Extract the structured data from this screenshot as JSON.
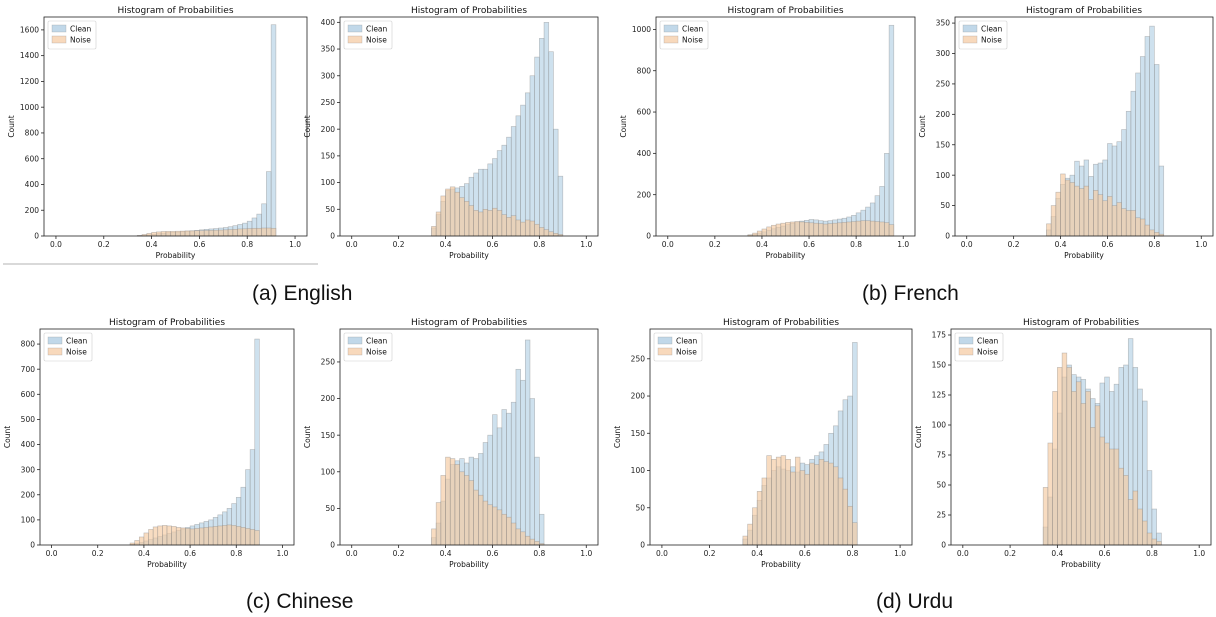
{
  "captions": [
    "(a) English",
    "(b) French",
    "(c) Chinese",
    "(d) Urdu"
  ],
  "style": {
    "clean_color": "#a6c8e0",
    "noise_color": "#f5c9a0",
    "edge_color": "#8a8a8a"
  },
  "chart_data": [
    {
      "type": "bar",
      "title": "Histogram of Probabilities",
      "xlabel": "Probability",
      "ylabel": "Count",
      "xlim": [
        -0.05,
        1.05
      ],
      "ylim": [
        0,
        1700
      ],
      "xticks": [
        "0.0",
        "0.2",
        "0.4",
        "0.6",
        "0.8",
        "1.0"
      ],
      "yticks": [
        0,
        200,
        400,
        600,
        800,
        1000,
        1200,
        1400,
        1600
      ],
      "legend": "top-left",
      "bin_start": 0.34,
      "bin_width": 0.02,
      "series": [
        {
          "name": "Clean",
          "values": [
            2,
            4,
            8,
            12,
            18,
            22,
            26,
            28,
            30,
            33,
            36,
            40,
            44,
            48,
            52,
            55,
            58,
            62,
            66,
            72,
            80,
            90,
            100,
            115,
            140,
            170,
            250,
            500,
            1640
          ]
        },
        {
          "name": "Noise",
          "values": [
            5,
            12,
            20,
            28,
            32,
            35,
            36,
            36,
            37,
            38,
            40,
            40,
            41,
            42,
            43,
            44,
            45,
            46,
            48,
            50,
            52,
            55,
            56,
            58,
            60,
            60,
            62,
            62,
            60
          ]
        }
      ]
    },
    {
      "type": "bar",
      "title": "Histogram of Probabilities",
      "xlabel": "Probability",
      "ylabel": "Count",
      "xlim": [
        -0.05,
        1.05
      ],
      "ylim": [
        0,
        410
      ],
      "xticks": [
        "0.0",
        "0.2",
        "0.4",
        "0.6",
        "0.8",
        "1.0"
      ],
      "yticks": [
        0,
        50,
        100,
        150,
        200,
        250,
        300,
        350,
        400
      ],
      "legend": "top-left",
      "bin_start": 0.34,
      "bin_width": 0.02,
      "series": [
        {
          "name": "Clean",
          "values": [
            15,
            40,
            65,
            85,
            88,
            90,
            93,
            98,
            110,
            118,
            125,
            125,
            135,
            145,
            160,
            170,
            185,
            205,
            225,
            245,
            268,
            300,
            335,
            370,
            400,
            345,
            200,
            112
          ]
        },
        {
          "name": "Noise",
          "values": [
            18,
            45,
            75,
            88,
            92,
            82,
            72,
            65,
            57,
            48,
            45,
            50,
            48,
            52,
            48,
            40,
            35,
            38,
            30,
            26,
            30,
            28,
            22,
            16,
            12,
            8,
            5,
            3
          ]
        }
      ]
    },
    {
      "type": "bar",
      "title": "Histogram of Probabilities",
      "xlabel": "Probability",
      "ylabel": "Count",
      "xlim": [
        -0.05,
        1.05
      ],
      "ylim": [
        0,
        1060
      ],
      "xticks": [
        "0.0",
        "0.2",
        "0.4",
        "0.6",
        "0.8",
        "1.0"
      ],
      "yticks": [
        0,
        200,
        400,
        600,
        800,
        1000
      ],
      "legend": "top-left",
      "bin_start": 0.34,
      "bin_width": 0.02,
      "series": [
        {
          "name": "Clean",
          "values": [
            4,
            8,
            14,
            20,
            28,
            35,
            42,
            48,
            55,
            62,
            68,
            72,
            76,
            80,
            78,
            74,
            72,
            74,
            78,
            82,
            86,
            92,
            100,
            112,
            125,
            140,
            160,
            195,
            240,
            400,
            1020
          ]
        },
        {
          "name": "Noise",
          "values": [
            6,
            14,
            24,
            34,
            44,
            52,
            58,
            62,
            66,
            68,
            70,
            68,
            66,
            64,
            62,
            60,
            58,
            60,
            62,
            64,
            66,
            68,
            70,
            72,
            74,
            74,
            72,
            70,
            68,
            65,
            55
          ]
        }
      ]
    },
    {
      "type": "bar",
      "title": "Histogram of Probabilities",
      "xlabel": "Probability",
      "ylabel": "Count",
      "xlim": [
        -0.05,
        1.05
      ],
      "ylim": [
        0,
        360
      ],
      "xticks": [
        "0.0",
        "0.2",
        "0.4",
        "0.6",
        "0.8",
        "1.0"
      ],
      "yticks": [
        0,
        50,
        100,
        150,
        200,
        250,
        300,
        350
      ],
      "legend": "top-left",
      "bin_start": 0.34,
      "bin_width": 0.02,
      "series": [
        {
          "name": "Clean",
          "values": [
            10,
            32,
            62,
            85,
            95,
            100,
            123,
            115,
            125,
            98,
            118,
            120,
            125,
            152,
            148,
            155,
            175,
            205,
            238,
            268,
            295,
            328,
            345,
            282,
            115
          ]
        },
        {
          "name": "Noise",
          "values": [
            20,
            50,
            72,
            102,
            92,
            88,
            82,
            78,
            82,
            60,
            75,
            68,
            58,
            65,
            50,
            55,
            45,
            42,
            42,
            30,
            28,
            18,
            10,
            6,
            3
          ]
        }
      ]
    },
    {
      "type": "bar",
      "title": "Histogram of Probabilities",
      "xlabel": "Probability",
      "ylabel": "Count",
      "xlim": [
        -0.05,
        1.05
      ],
      "ylim": [
        0,
        860
      ],
      "xticks": [
        "0.0",
        "0.2",
        "0.4",
        "0.6",
        "0.8",
        "1.0"
      ],
      "yticks": [
        0,
        100,
        200,
        300,
        400,
        500,
        600,
        700,
        800
      ],
      "legend": "top-left",
      "bin_start": 0.34,
      "bin_width": 0.02,
      "series": [
        {
          "name": "Clean",
          "values": [
            3,
            6,
            10,
            16,
            22,
            28,
            34,
            40,
            46,
            52,
            58,
            64,
            70,
            76,
            82,
            88,
            94,
            100,
            110,
            120,
            132,
            146,
            165,
            190,
            230,
            300,
            380,
            820
          ]
        },
        {
          "name": "Noise",
          "values": [
            8,
            18,
            32,
            48,
            62,
            72,
            76,
            78,
            76,
            74,
            70,
            68,
            66,
            64,
            66,
            68,
            70,
            72,
            74,
            76,
            78,
            80,
            78,
            74,
            70,
            66,
            62,
            58
          ]
        }
      ]
    },
    {
      "type": "bar",
      "title": "Histogram of Probabilities",
      "xlabel": "Probability",
      "ylabel": "Count",
      "xlim": [
        -0.05,
        1.05
      ],
      "ylim": [
        0,
        295
      ],
      "xticks": [
        "0.0",
        "0.2",
        "0.4",
        "0.6",
        "0.8",
        "1.0"
      ],
      "yticks": [
        0,
        50,
        100,
        150,
        200,
        250
      ],
      "legend": "top-left",
      "bin_start": 0.34,
      "bin_width": 0.02,
      "series": [
        {
          "name": "Clean",
          "values": [
            10,
            30,
            60,
            90,
            110,
            115,
            118,
            112,
            120,
            118,
            125,
            140,
            150,
            178,
            160,
            185,
            180,
            195,
            240,
            225,
            280,
            200,
            120,
            42
          ]
        },
        {
          "name": "Noise",
          "values": [
            22,
            58,
            95,
            120,
            118,
            110,
            100,
            95,
            88,
            75,
            68,
            60,
            55,
            52,
            48,
            42,
            38,
            30,
            22,
            18,
            12,
            8,
            5,
            2
          ]
        }
      ]
    },
    {
      "type": "bar",
      "title": "Histogram of Probabilities",
      "xlabel": "Probability",
      "ylabel": "Count",
      "xlim": [
        -0.05,
        1.05
      ],
      "ylim": [
        0,
        290
      ],
      "xticks": [
        "0.0",
        "0.2",
        "0.4",
        "0.6",
        "0.8",
        "1.0"
      ],
      "yticks": [
        0,
        50,
        100,
        150,
        200,
        250
      ],
      "legend": "top-left",
      "bin_start": 0.34,
      "bin_width": 0.02,
      "series": [
        {
          "name": "Clean",
          "values": [
            8,
            20,
            40,
            60,
            80,
            90,
            100,
            105,
            102,
            100,
            105,
            98,
            110,
            108,
            115,
            120,
            125,
            135,
            150,
            160,
            180,
            195,
            200,
            272
          ]
        },
        {
          "name": "Noise",
          "values": [
            12,
            28,
            50,
            72,
            90,
            120,
            115,
            118,
            120,
            115,
            98,
            118,
            100,
            95,
            110,
            108,
            115,
            112,
            110,
            105,
            90,
            75,
            52,
            30
          ]
        }
      ]
    },
    {
      "type": "bar",
      "title": "Histogram of Probabilities",
      "xlabel": "Probability",
      "ylabel": "Count",
      "xlim": [
        -0.05,
        1.05
      ],
      "ylim": [
        0,
        180
      ],
      "xticks": [
        "0.0",
        "0.2",
        "0.4",
        "0.6",
        "0.8",
        "1.0"
      ],
      "yticks": [
        0,
        25,
        50,
        75,
        100,
        125,
        150,
        175
      ],
      "legend": "top-left",
      "bin_start": 0.34,
      "bin_width": 0.02,
      "series": [
        {
          "name": "Clean",
          "values": [
            15,
            40,
            80,
            110,
            140,
            150,
            142,
            140,
            138,
            130,
            122,
            118,
            135,
            140,
            128,
            134,
            148,
            150,
            172,
            148,
            130,
            120,
            62,
            30,
            10
          ]
        },
        {
          "name": "Noise",
          "values": [
            48,
            85,
            128,
            148,
            160,
            148,
            128,
            136,
            118,
            128,
            98,
            116,
            90,
            85,
            80,
            80,
            64,
            58,
            38,
            45,
            30,
            20,
            10,
            5,
            3
          ]
        }
      ]
    }
  ]
}
